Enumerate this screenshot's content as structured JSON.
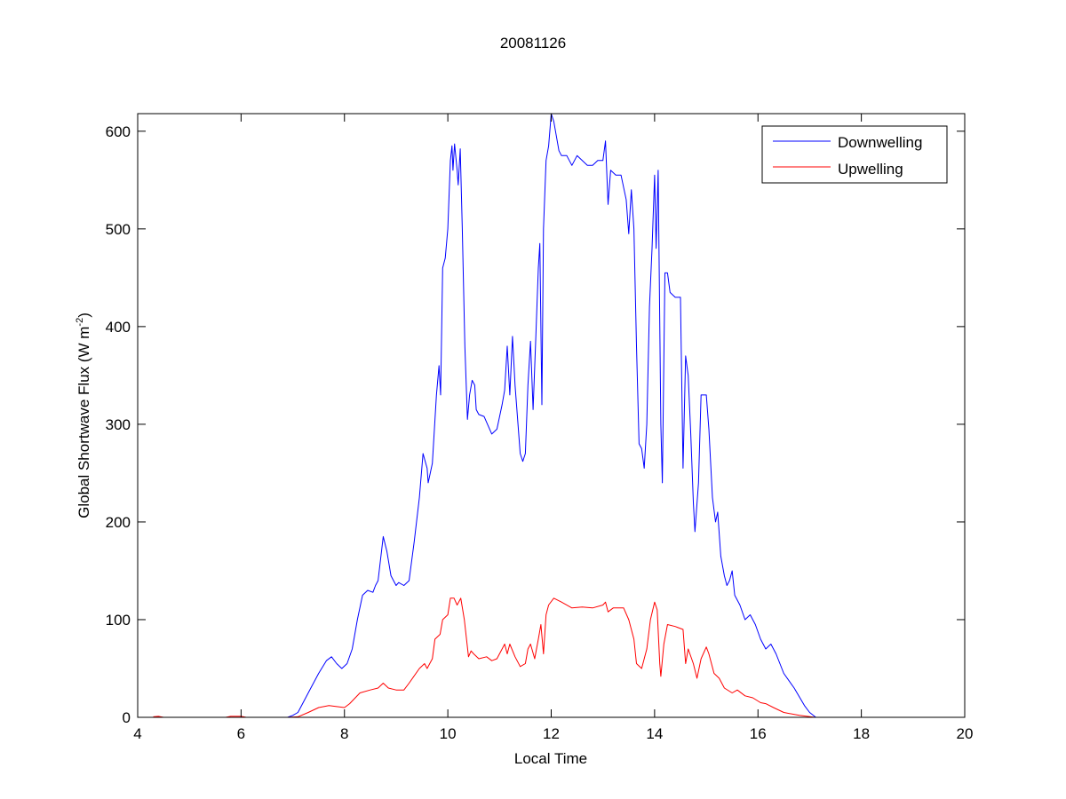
{
  "chart_data": {
    "type": "line",
    "title": "20081126",
    "xlabel": "Local Time",
    "ylabel": {
      "main": "Global Shortwave Flux (W m",
      "sup": "-2",
      "end": ")"
    },
    "xlim": [
      4,
      20
    ],
    "ylim": [
      0,
      618
    ],
    "xticks": [
      4,
      6,
      8,
      10,
      12,
      14,
      16,
      18,
      20
    ],
    "yticks": [
      0,
      100,
      200,
      300,
      400,
      500,
      600
    ],
    "grid": false,
    "legend_position": "top-right",
    "series": [
      {
        "name": "Downwelling",
        "color": "#0000ff",
        "points": [
          [
            6.9,
            0
          ],
          [
            7.0,
            2
          ],
          [
            7.1,
            5
          ],
          [
            7.2,
            15
          ],
          [
            7.35,
            30
          ],
          [
            7.5,
            45
          ],
          [
            7.65,
            58
          ],
          [
            7.75,
            62
          ],
          [
            7.85,
            55
          ],
          [
            7.95,
            50
          ],
          [
            8.05,
            55
          ],
          [
            8.15,
            70
          ],
          [
            8.25,
            100
          ],
          [
            8.35,
            125
          ],
          [
            8.45,
            130
          ],
          [
            8.55,
            128
          ],
          [
            8.6,
            135
          ],
          [
            8.65,
            140
          ],
          [
            8.75,
            185
          ],
          [
            8.82,
            170
          ],
          [
            8.9,
            145
          ],
          [
            9.0,
            135
          ],
          [
            9.05,
            138
          ],
          [
            9.15,
            135
          ],
          [
            9.25,
            140
          ],
          [
            9.35,
            180
          ],
          [
            9.45,
            225
          ],
          [
            9.52,
            270
          ],
          [
            9.6,
            255
          ],
          [
            9.62,
            240
          ],
          [
            9.7,
            260
          ],
          [
            9.78,
            330
          ],
          [
            9.83,
            360
          ],
          [
            9.86,
            330
          ],
          [
            9.9,
            460
          ],
          [
            9.95,
            470
          ],
          [
            10.0,
            500
          ],
          [
            10.05,
            570
          ],
          [
            10.08,
            585
          ],
          [
            10.1,
            560
          ],
          [
            10.13,
            587
          ],
          [
            10.18,
            560
          ],
          [
            10.2,
            545
          ],
          [
            10.24,
            582
          ],
          [
            10.28,
            500
          ],
          [
            10.33,
            380
          ],
          [
            10.38,
            305
          ],
          [
            10.42,
            330
          ],
          [
            10.47,
            345
          ],
          [
            10.52,
            340
          ],
          [
            10.55,
            315
          ],
          [
            10.6,
            310
          ],
          [
            10.7,
            308
          ],
          [
            10.85,
            290
          ],
          [
            10.95,
            295
          ],
          [
            11.05,
            320
          ],
          [
            11.1,
            335
          ],
          [
            11.15,
            380
          ],
          [
            11.2,
            330
          ],
          [
            11.25,
            390
          ],
          [
            11.3,
            340
          ],
          [
            11.4,
            270
          ],
          [
            11.45,
            262
          ],
          [
            11.5,
            270
          ],
          [
            11.55,
            340
          ],
          [
            11.6,
            385
          ],
          [
            11.65,
            315
          ],
          [
            11.7,
            385
          ],
          [
            11.75,
            460
          ],
          [
            11.78,
            485
          ],
          [
            11.82,
            320
          ],
          [
            11.85,
            500
          ],
          [
            11.9,
            570
          ],
          [
            11.95,
            585
          ],
          [
            12.0,
            618
          ],
          [
            12.05,
            610
          ],
          [
            12.1,
            595
          ],
          [
            12.15,
            580
          ],
          [
            12.2,
            575
          ],
          [
            12.3,
            575
          ],
          [
            12.4,
            565
          ],
          [
            12.5,
            575
          ],
          [
            12.6,
            570
          ],
          [
            12.7,
            565
          ],
          [
            12.8,
            565
          ],
          [
            12.9,
            570
          ],
          [
            13.0,
            570
          ],
          [
            13.05,
            590
          ],
          [
            13.1,
            525
          ],
          [
            13.15,
            560
          ],
          [
            13.25,
            555
          ],
          [
            13.35,
            555
          ],
          [
            13.45,
            530
          ],
          [
            13.5,
            495
          ],
          [
            13.55,
            540
          ],
          [
            13.6,
            500
          ],
          [
            13.65,
            380
          ],
          [
            13.7,
            280
          ],
          [
            13.75,
            275
          ],
          [
            13.8,
            255
          ],
          [
            13.85,
            300
          ],
          [
            13.9,
            420
          ],
          [
            13.95,
            480
          ],
          [
            14.0,
            555
          ],
          [
            14.03,
            480
          ],
          [
            14.07,
            560
          ],
          [
            14.12,
            300
          ],
          [
            14.15,
            240
          ],
          [
            14.2,
            455
          ],
          [
            14.25,
            455
          ],
          [
            14.3,
            435
          ],
          [
            14.4,
            430
          ],
          [
            14.5,
            430
          ],
          [
            14.55,
            255
          ],
          [
            14.6,
            370
          ],
          [
            14.65,
            350
          ],
          [
            14.7,
            290
          ],
          [
            14.75,
            220
          ],
          [
            14.78,
            190
          ],
          [
            14.85,
            240
          ],
          [
            14.9,
            330
          ],
          [
            15.0,
            330
          ],
          [
            15.05,
            295
          ],
          [
            15.12,
            225
          ],
          [
            15.18,
            200
          ],
          [
            15.22,
            210
          ],
          [
            15.28,
            165
          ],
          [
            15.35,
            145
          ],
          [
            15.4,
            135
          ],
          [
            15.45,
            140
          ],
          [
            15.5,
            150
          ],
          [
            15.55,
            125
          ],
          [
            15.65,
            115
          ],
          [
            15.75,
            100
          ],
          [
            15.85,
            105
          ],
          [
            15.95,
            95
          ],
          [
            16.05,
            80
          ],
          [
            16.15,
            70
          ],
          [
            16.25,
            75
          ],
          [
            16.35,
            65
          ],
          [
            16.5,
            45
          ],
          [
            16.7,
            30
          ],
          [
            16.9,
            12
          ],
          [
            17.0,
            5
          ],
          [
            17.12,
            0
          ]
        ]
      },
      {
        "name": "Upwelling",
        "color": "#ff0000",
        "points": [
          [
            4.3,
            0.5
          ],
          [
            4.4,
            1
          ],
          [
            4.5,
            0
          ],
          [
            5.7,
            0
          ],
          [
            5.8,
            1
          ],
          [
            6.0,
            1
          ],
          [
            6.1,
            0
          ],
          [
            6.9,
            0
          ],
          [
            7.1,
            0.5
          ],
          [
            7.3,
            5
          ],
          [
            7.5,
            10
          ],
          [
            7.7,
            12
          ],
          [
            7.85,
            11
          ],
          [
            8.0,
            10
          ],
          [
            8.1,
            14
          ],
          [
            8.3,
            25
          ],
          [
            8.5,
            28
          ],
          [
            8.65,
            30
          ],
          [
            8.75,
            35
          ],
          [
            8.85,
            30
          ],
          [
            9.0,
            28
          ],
          [
            9.15,
            28
          ],
          [
            9.25,
            35
          ],
          [
            9.45,
            50
          ],
          [
            9.55,
            55
          ],
          [
            9.6,
            50
          ],
          [
            9.7,
            60
          ],
          [
            9.75,
            80
          ],
          [
            9.85,
            85
          ],
          [
            9.9,
            100
          ],
          [
            10.0,
            105
          ],
          [
            10.05,
            122
          ],
          [
            10.12,
            122
          ],
          [
            10.18,
            115
          ],
          [
            10.25,
            122
          ],
          [
            10.32,
            100
          ],
          [
            10.4,
            62
          ],
          [
            10.45,
            68
          ],
          [
            10.5,
            65
          ],
          [
            10.6,
            60
          ],
          [
            10.75,
            62
          ],
          [
            10.85,
            58
          ],
          [
            10.95,
            60
          ],
          [
            11.05,
            70
          ],
          [
            11.1,
            75
          ],
          [
            11.15,
            65
          ],
          [
            11.2,
            75
          ],
          [
            11.3,
            62
          ],
          [
            11.4,
            52
          ],
          [
            11.5,
            55
          ],
          [
            11.55,
            70
          ],
          [
            11.6,
            75
          ],
          [
            11.68,
            60
          ],
          [
            11.75,
            80
          ],
          [
            11.8,
            95
          ],
          [
            11.85,
            65
          ],
          [
            11.9,
            105
          ],
          [
            11.95,
            115
          ],
          [
            12.05,
            122
          ],
          [
            12.2,
            118
          ],
          [
            12.4,
            112
          ],
          [
            12.6,
            113
          ],
          [
            12.8,
            112
          ],
          [
            13.0,
            115
          ],
          [
            13.05,
            118
          ],
          [
            13.1,
            108
          ],
          [
            13.2,
            112
          ],
          [
            13.4,
            112
          ],
          [
            13.5,
            100
          ],
          [
            13.6,
            80
          ],
          [
            13.65,
            55
          ],
          [
            13.75,
            50
          ],
          [
            13.85,
            70
          ],
          [
            13.92,
            100
          ],
          [
            14.0,
            118
          ],
          [
            14.05,
            110
          ],
          [
            14.1,
            55
          ],
          [
            14.12,
            42
          ],
          [
            14.18,
            75
          ],
          [
            14.25,
            95
          ],
          [
            14.4,
            93
          ],
          [
            14.55,
            90
          ],
          [
            14.6,
            55
          ],
          [
            14.65,
            70
          ],
          [
            14.75,
            55
          ],
          [
            14.82,
            40
          ],
          [
            14.9,
            60
          ],
          [
            15.0,
            72
          ],
          [
            15.05,
            65
          ],
          [
            15.15,
            45
          ],
          [
            15.25,
            40
          ],
          [
            15.35,
            30
          ],
          [
            15.5,
            25
          ],
          [
            15.6,
            28
          ],
          [
            15.75,
            22
          ],
          [
            15.9,
            20
          ],
          [
            16.05,
            15
          ],
          [
            16.15,
            14
          ],
          [
            16.3,
            10
          ],
          [
            16.5,
            5
          ],
          [
            16.8,
            2
          ],
          [
            17.1,
            0
          ]
        ]
      }
    ]
  }
}
